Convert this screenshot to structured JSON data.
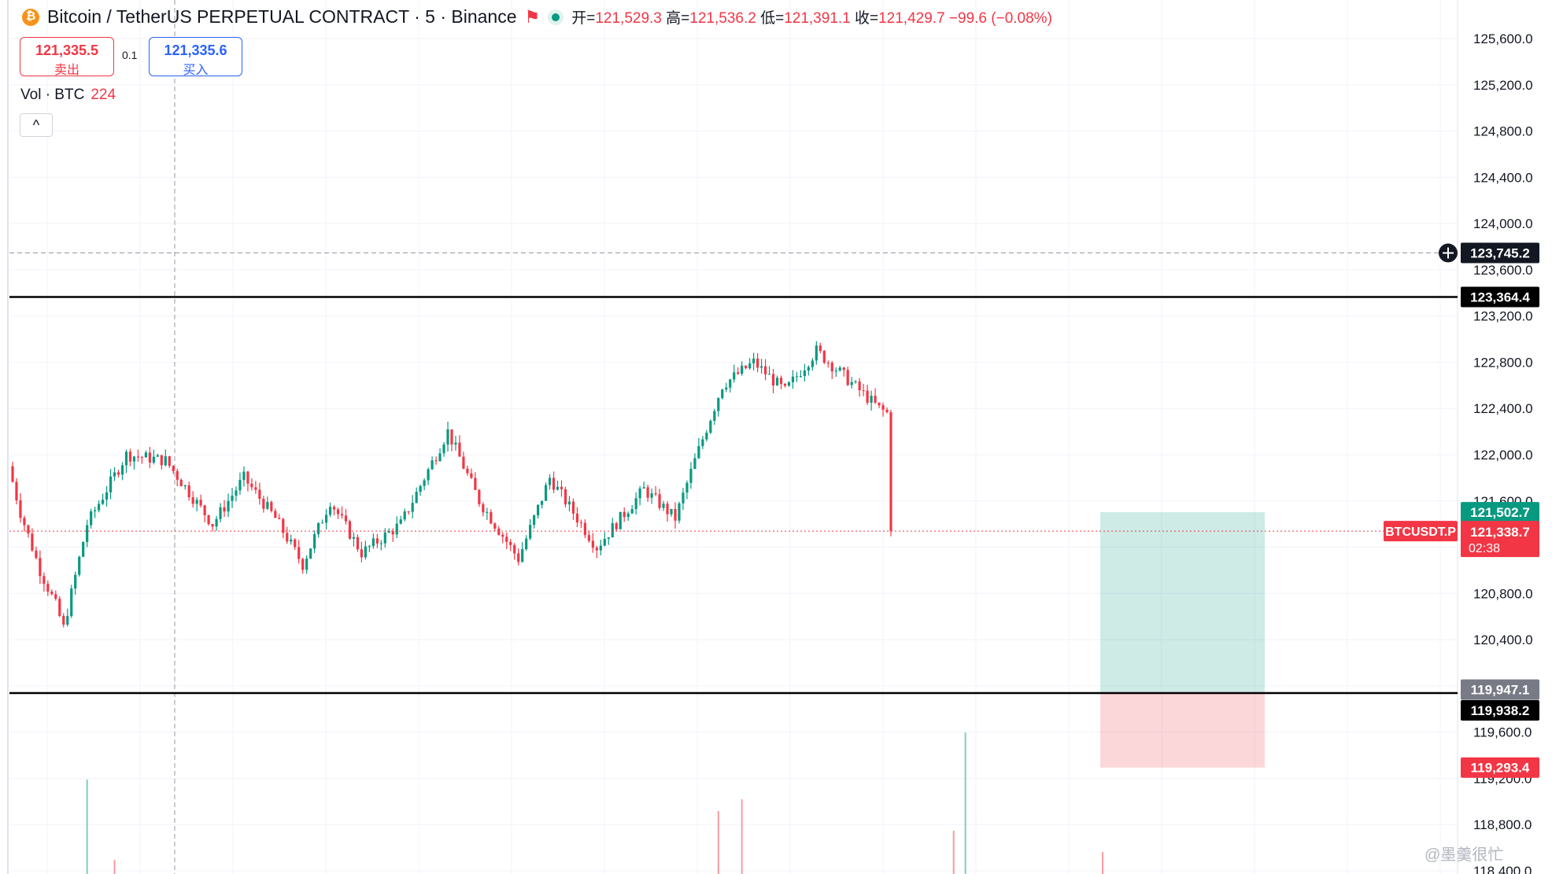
{
  "header": {
    "title": "Bitcoin / TetherUS PERPETUAL CONTRACT · 5 · Binance",
    "ohlc": [
      {
        "label": "开=",
        "value": "121,529.3"
      },
      {
        "label": "高=",
        "value": "121,536.2"
      },
      {
        "label": "低=",
        "value": "121,391.1"
      },
      {
        "label": "收=",
        "value": "121,429.7"
      }
    ],
    "change": "−99.6 (−0.08%)"
  },
  "trade": {
    "sell_price": "121,335.5",
    "sell_label": "卖出",
    "spread": "0.1",
    "buy_price": "121,335.6",
    "buy_label": "买入"
  },
  "volume": {
    "label": "Vol · BTC",
    "value": "224"
  },
  "collapse_glyph": "^",
  "watermark": "@墨羹很忙",
  "colors": {
    "up": "#089981",
    "down": "#f23645",
    "grid": "#f0f3fa",
    "axis_text": "#131722"
  },
  "chart_data": {
    "type": "candlestick",
    "symbol_tag": "BTCUSDT.P",
    "y_ticks": [
      "125,600.0",
      "125,200.0",
      "124,800.0",
      "124,400.0",
      "124,000.0",
      "123,600.0",
      "123,200.0",
      "122,800.0",
      "122,400.0",
      "122,000.0",
      "121,600.0",
      "121,200.0",
      "120,800.0",
      "120,400.0",
      "120,000.0",
      "119,600.0",
      "119,200.0",
      "118,800.0",
      "118,400.0"
    ],
    "y_tick_values": [
      125600,
      125200,
      124800,
      124400,
      124000,
      123600,
      123200,
      122800,
      122400,
      122000,
      121600,
      121200,
      120800,
      120400,
      120000,
      119600,
      119200,
      118800,
      118400
    ],
    "ylim": [
      118390,
      125820
    ],
    "candle_count": 225,
    "anchors": [
      [
        0,
        121900
      ],
      [
        3,
        121500
      ],
      [
        8,
        121000
      ],
      [
        12,
        120700
      ],
      [
        14,
        120500
      ],
      [
        20,
        121400
      ],
      [
        30,
        122000
      ],
      [
        40,
        121950
      ],
      [
        52,
        121400
      ],
      [
        60,
        121800
      ],
      [
        68,
        121450
      ],
      [
        75,
        121050
      ],
      [
        82,
        121600
      ],
      [
        90,
        121150
      ],
      [
        100,
        121400
      ],
      [
        112,
        122200
      ],
      [
        120,
        121600
      ],
      [
        130,
        121100
      ],
      [
        138,
        121800
      ],
      [
        150,
        121200
      ],
      [
        162,
        121700
      ],
      [
        170,
        121450
      ],
      [
        175,
        121950
      ],
      [
        182,
        122600
      ],
      [
        190,
        122800
      ],
      [
        198,
        122550
      ],
      [
        206,
        122900
      ],
      [
        214,
        122650
      ],
      [
        222,
        122400
      ],
      [
        232,
        122200
      ],
      [
        242,
        122050
      ],
      [
        252,
        122200
      ],
      [
        264,
        122050
      ],
      [
        274,
        123000
      ],
      [
        282,
        122600
      ],
      [
        290,
        123800
      ],
      [
        295,
        123850
      ],
      [
        305,
        123300
      ],
      [
        312,
        123400
      ],
      [
        320,
        123600
      ],
      [
        332,
        123050
      ],
      [
        340,
        123250
      ],
      [
        352,
        123200
      ],
      [
        360,
        123350
      ],
      [
        370,
        122900
      ],
      [
        380,
        122500
      ],
      [
        388,
        122050
      ],
      [
        398,
        121800
      ],
      [
        410,
        121850
      ],
      [
        420,
        121950
      ],
      [
        430,
        121900
      ],
      [
        440,
        121800
      ],
      [
        446,
        121700
      ],
      [
        452,
        121430
      ]
    ],
    "candles_visible": 226,
    "current_price": "121,338.7",
    "countdown": "02:38",
    "crosshair_price": "123,745.2",
    "crosshair_value": 123745.2,
    "horizontal_lines": [
      {
        "value": 123364.4,
        "label": "123,364.4"
      },
      {
        "value": 119938.2,
        "label": "119,938.2"
      }
    ],
    "position": {
      "type": "long",
      "entry": 121338.7,
      "target": 121502.7,
      "target_label": "121,502.7",
      "stop_entry": 119947.1,
      "stop_label": "119,947.1",
      "stop": 119293.4,
      "stop_label2": "119,293.4"
    },
    "volume_spikes": [
      [
        19,
        120
      ],
      [
        26,
        18
      ],
      [
        180,
        80
      ],
      [
        186,
        95
      ],
      [
        240,
        55
      ],
      [
        243,
        180
      ],
      [
        278,
        28
      ]
    ],
    "y_axis_side": "right"
  }
}
